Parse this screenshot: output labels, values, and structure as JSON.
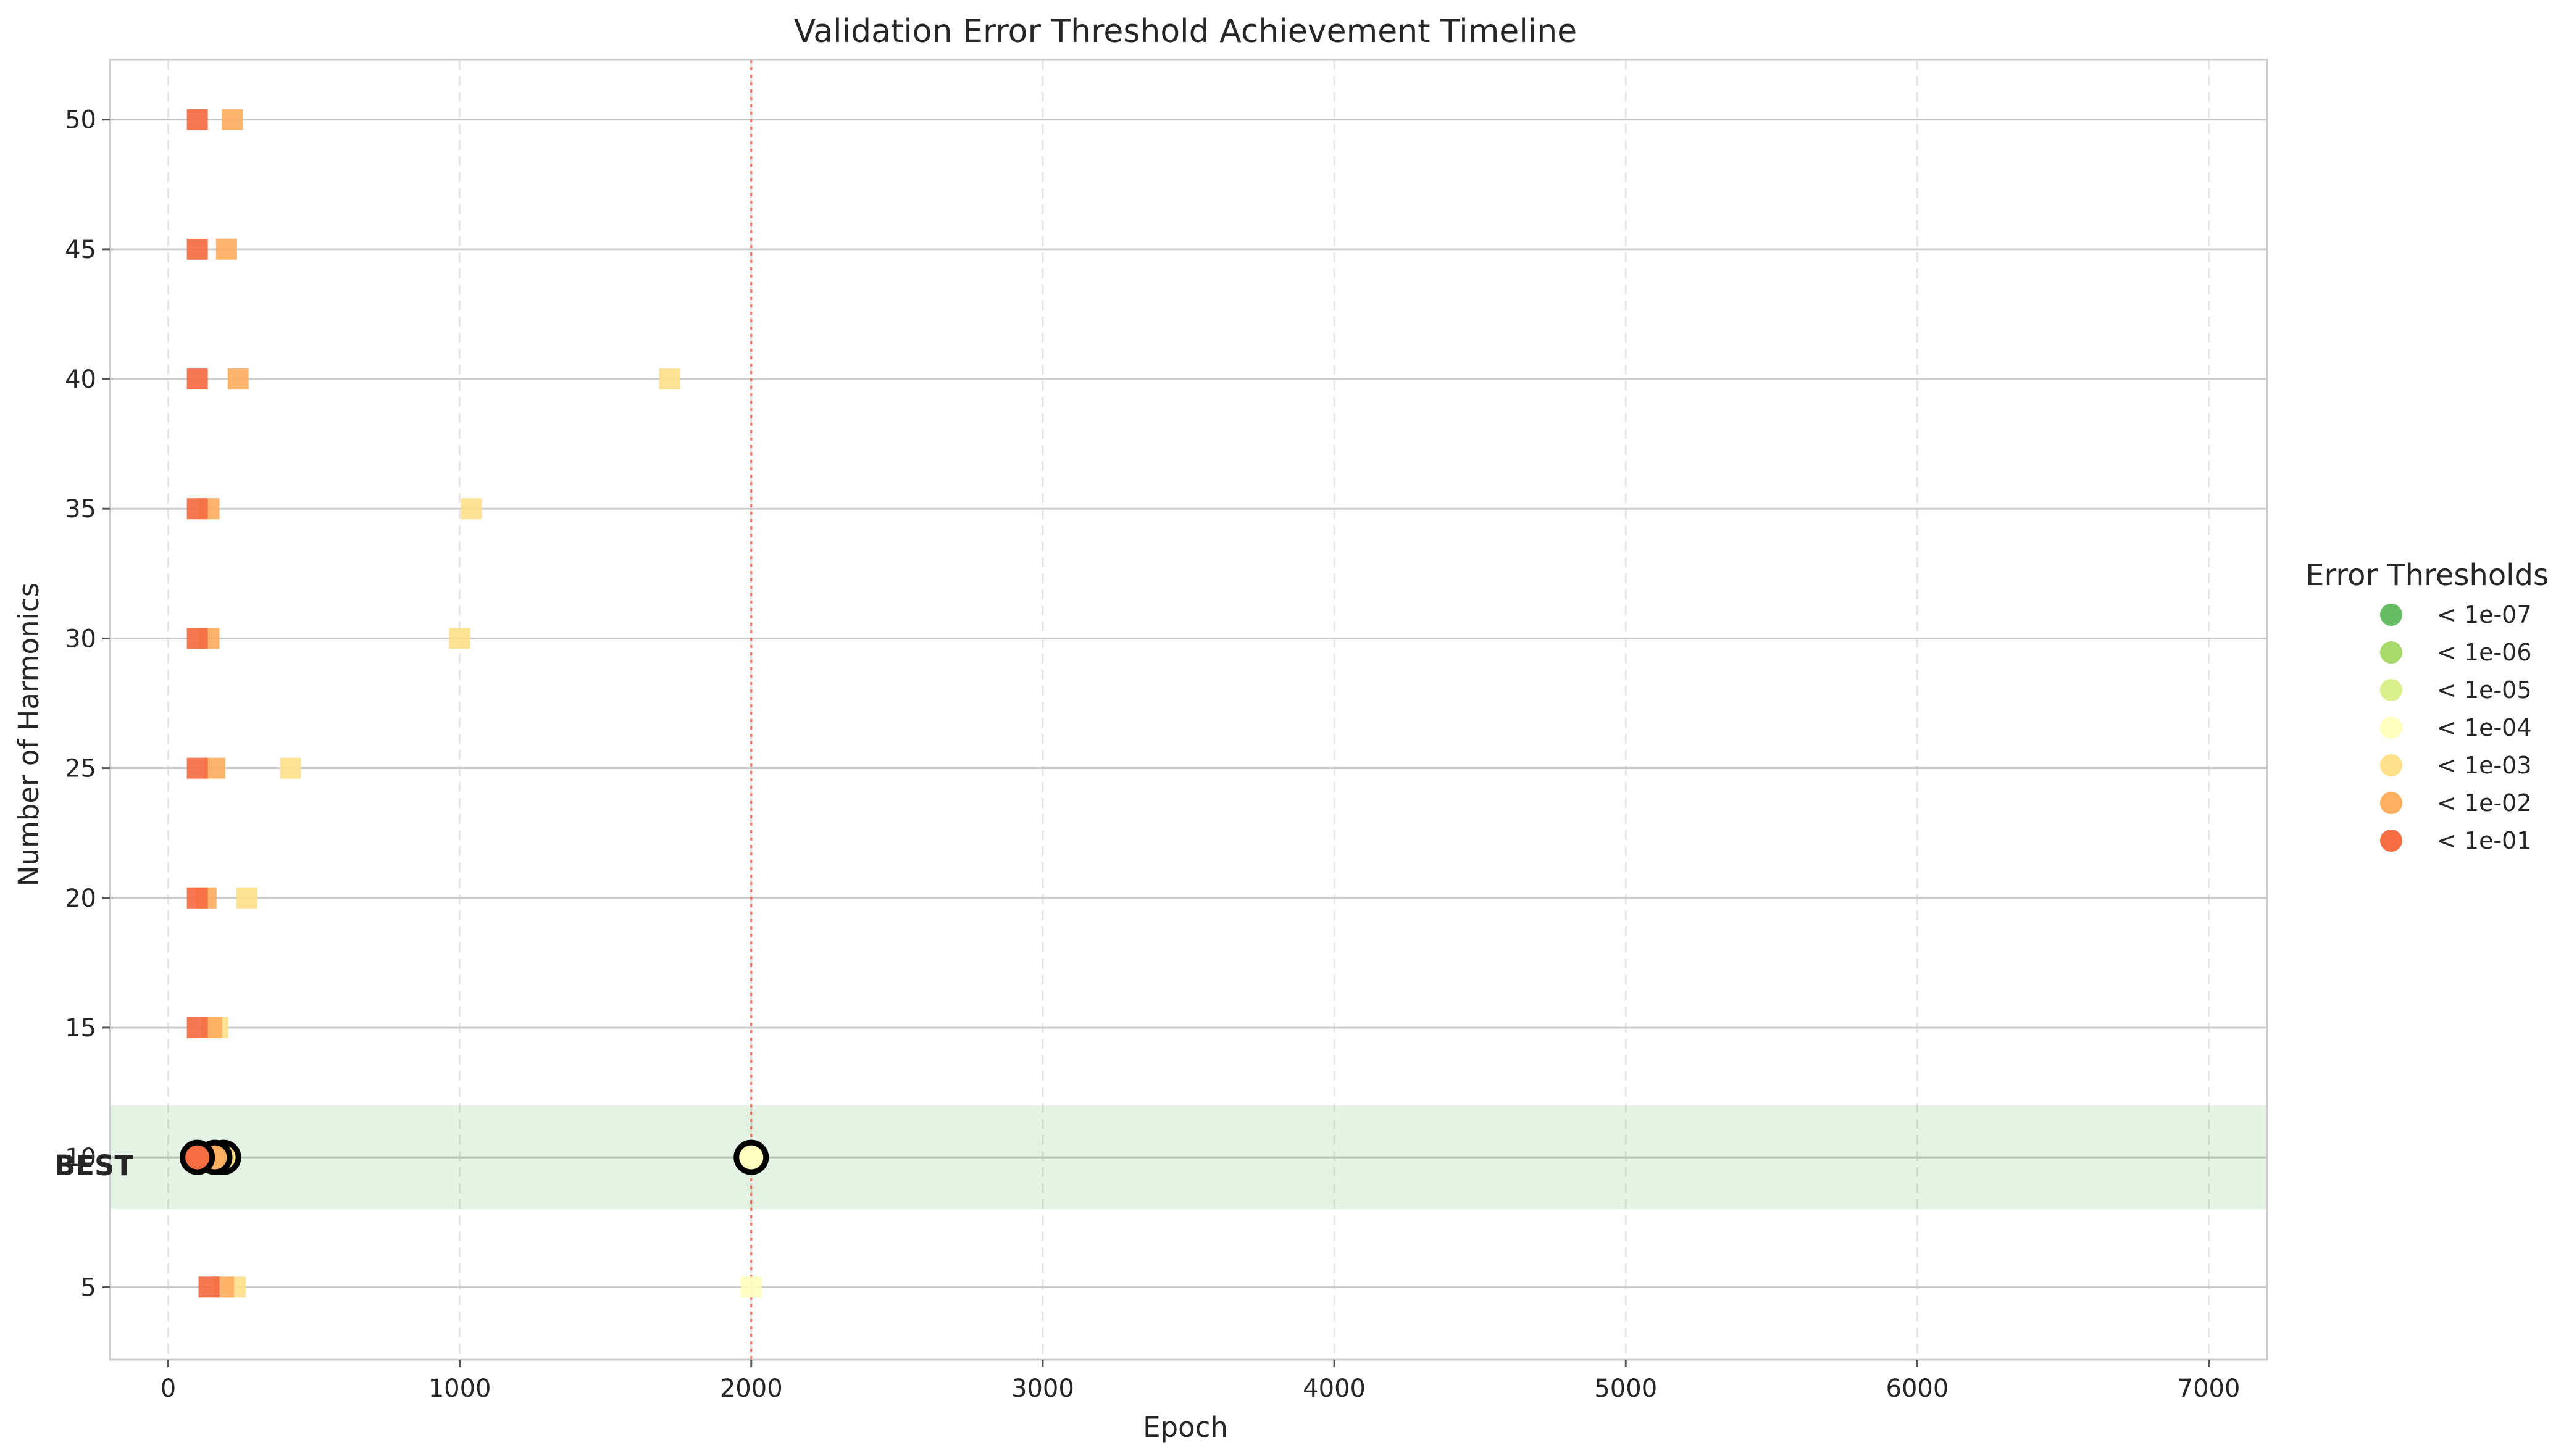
{
  "chart_data": {
    "type": "scatter",
    "title": "Validation Error Threshold Achievement Timeline",
    "xlabel": "Epoch",
    "ylabel": "Number of Harmonics",
    "xlim": [
      -200,
      7200
    ],
    "ylim": [
      2.2,
      52.3
    ],
    "x_ticks": [
      "0",
      "1000",
      "2000",
      "3000",
      "4000",
      "5000",
      "6000",
      "7000"
    ],
    "y_ticks": [
      "5",
      "10",
      "15",
      "20",
      "25",
      "30",
      "35",
      "40",
      "45",
      "50"
    ],
    "grid": true,
    "legend": {
      "title": "Error Thresholds",
      "placement": "outside-right",
      "items": [
        {
          "label": "< 1e-07",
          "color": "#66bd63"
        },
        {
          "label": "< 1e-06",
          "color": "#a6d96a"
        },
        {
          "label": "< 1e-05",
          "color": "#d9ef8b"
        },
        {
          "label": "< 1e-04",
          "color": "#ffffbf"
        },
        {
          "label": "< 1e-03",
          "color": "#fee08b"
        },
        {
          "label": "< 1e-02",
          "color": "#fdae61"
        },
        {
          "label": "< 1e-01",
          "color": "#f46d43"
        }
      ]
    },
    "reference_line": {
      "x": 2000,
      "color": "#e74c3c"
    },
    "best": {
      "label": "BEST",
      "harmonics": 10,
      "band": [
        8,
        12
      ],
      "color": "#2ca02c",
      "label_color": "#1a7a1a"
    },
    "points": [
      {
        "h": 5,
        "epoch": 230,
        "threshold": "< 1e-03"
      },
      {
        "h": 5,
        "epoch": 190,
        "threshold": "< 1e-02"
      },
      {
        "h": 5,
        "epoch": 140,
        "threshold": "< 1e-01"
      },
      {
        "h": 5,
        "epoch": 2000,
        "threshold": "< 1e-04"
      },
      {
        "h": 15,
        "epoch": 170,
        "threshold": "< 1e-03"
      },
      {
        "h": 15,
        "epoch": 150,
        "threshold": "< 1e-02"
      },
      {
        "h": 15,
        "epoch": 100,
        "threshold": "< 1e-01"
      },
      {
        "h": 20,
        "epoch": 130,
        "threshold": "< 1e-02"
      },
      {
        "h": 20,
        "epoch": 270,
        "threshold": "< 1e-03"
      },
      {
        "h": 20,
        "epoch": 100,
        "threshold": "< 1e-01"
      },
      {
        "h": 25,
        "epoch": 160,
        "threshold": "< 1e-02"
      },
      {
        "h": 25,
        "epoch": 420,
        "threshold": "< 1e-03"
      },
      {
        "h": 25,
        "epoch": 100,
        "threshold": "< 1e-01"
      },
      {
        "h": 30,
        "epoch": 140,
        "threshold": "< 1e-02"
      },
      {
        "h": 30,
        "epoch": 1000,
        "threshold": "< 1e-03"
      },
      {
        "h": 30,
        "epoch": 100,
        "threshold": "< 1e-01"
      },
      {
        "h": 35,
        "epoch": 140,
        "threshold": "< 1e-02"
      },
      {
        "h": 35,
        "epoch": 1040,
        "threshold": "< 1e-03"
      },
      {
        "h": 35,
        "epoch": 100,
        "threshold": "< 1e-01"
      },
      {
        "h": 40,
        "epoch": 240,
        "threshold": "< 1e-02"
      },
      {
        "h": 40,
        "epoch": 1720,
        "threshold": "< 1e-03"
      },
      {
        "h": 40,
        "epoch": 100,
        "threshold": "< 1e-01"
      },
      {
        "h": 45,
        "epoch": 200,
        "threshold": "< 1e-02"
      },
      {
        "h": 45,
        "epoch": 100,
        "threshold": "< 1e-01"
      },
      {
        "h": 50,
        "epoch": 220,
        "threshold": "< 1e-02"
      },
      {
        "h": 50,
        "epoch": 100,
        "threshold": "< 1e-01"
      },
      {
        "h": 10,
        "epoch": 190,
        "threshold": "< 1e-03"
      },
      {
        "h": 10,
        "epoch": 160,
        "threshold": "< 1e-02"
      },
      {
        "h": 10,
        "epoch": 100,
        "threshold": "< 1e-01"
      },
      {
        "h": 10,
        "epoch": 2000,
        "threshold": "< 1e-04"
      }
    ]
  }
}
